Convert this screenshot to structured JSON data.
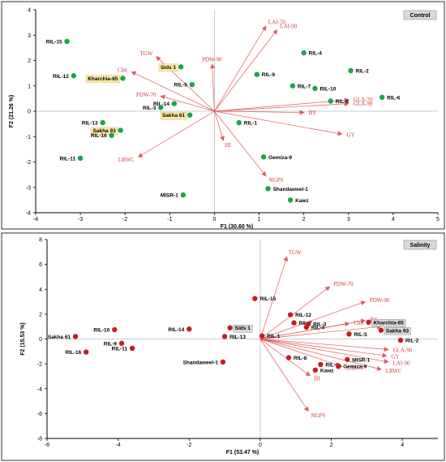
{
  "chart_data": [
    {
      "type": "scatter",
      "title": "Control",
      "xlabel": "F1 (30.60 %)",
      "ylabel": "F2 (21.26 %)",
      "xlim": [
        -4,
        5
      ],
      "ylim": [
        -4,
        4
      ],
      "xticks": [
        "-4",
        "-3",
        "-2",
        "-1",
        "0",
        "1",
        "2",
        "3",
        "4",
        "5"
      ],
      "yticks": [
        "-4",
        "-3",
        "-2",
        "-1",
        "0",
        "1",
        "2",
        "3",
        "4"
      ],
      "point_color": "#1aa64a",
      "vector_color": "#e05a5a",
      "points": [
        {
          "name": "RIL-15",
          "x": -3.3,
          "y": 2.75,
          "highlight": false
        },
        {
          "name": "RIL-12",
          "x": -3.15,
          "y": 1.4,
          "highlight": false
        },
        {
          "name": "Kharchia-65",
          "x": -2.05,
          "y": 1.3,
          "highlight": true
        },
        {
          "name": "Sids 1",
          "x": -0.75,
          "y": 1.75,
          "highlight": true
        },
        {
          "name": "RIL-5",
          "x": -0.5,
          "y": 1.05,
          "highlight": false
        },
        {
          "name": "RIL-14",
          "x": -0.9,
          "y": 0.3,
          "highlight": false
        },
        {
          "name": "RIL-3",
          "x": -1.2,
          "y": 0.15,
          "highlight": false
        },
        {
          "name": "Sakha 61",
          "x": -0.55,
          "y": -0.15,
          "highlight": true
        },
        {
          "name": "RIL-13",
          "x": -2.5,
          "y": -0.45,
          "highlight": false
        },
        {
          "name": "Sakha 93",
          "x": -2.1,
          "y": -0.75,
          "highlight": true
        },
        {
          "name": "RIL-16",
          "x": -2.3,
          "y": -0.95,
          "highlight": false
        },
        {
          "name": "RIL-11",
          "x": -3.0,
          "y": -1.85,
          "highlight": false
        },
        {
          "name": "MISR-1",
          "x": -0.7,
          "y": -3.3,
          "highlight": false
        },
        {
          "name": "RIL-1",
          "x": 0.55,
          "y": -0.45,
          "highlight": false
        },
        {
          "name": "RIL-9",
          "x": 0.95,
          "y": 1.45,
          "highlight": false
        },
        {
          "name": "RIL-7",
          "x": 1.75,
          "y": 1.0,
          "highlight": false
        },
        {
          "name": "RIL-4",
          "x": 2.0,
          "y": 2.3,
          "highlight": false
        },
        {
          "name": "RIL-10",
          "x": 2.25,
          "y": 0.9,
          "highlight": false
        },
        {
          "name": "RIL-8",
          "x": 2.6,
          "y": 0.4,
          "highlight": false
        },
        {
          "name": "RIL-2",
          "x": 3.05,
          "y": 1.6,
          "highlight": false
        },
        {
          "name": "RIL-6",
          "x": 3.75,
          "y": 0.55,
          "highlight": false
        },
        {
          "name": "Gemiza-9",
          "x": 1.1,
          "y": -1.8,
          "highlight": false
        },
        {
          "name": "Shandaweel-1",
          "x": 1.2,
          "y": -3.05,
          "highlight": false
        },
        {
          "name": "Kawz",
          "x": 1.7,
          "y": -3.5,
          "highlight": false
        }
      ],
      "vectors": [
        {
          "name": "LAI-70",
          "x": 1.15,
          "y": 3.35
        },
        {
          "name": "LAI-90",
          "x": 1.4,
          "y": 3.2
        },
        {
          "name": "TGW",
          "x": -1.3,
          "y": 2.15
        },
        {
          "name": "Chlt",
          "x": -1.85,
          "y": 1.55
        },
        {
          "name": "PDW-90",
          "x": -0.05,
          "y": 1.85
        },
        {
          "name": "PDW-70",
          "x": -1.2,
          "y": 0.6
        },
        {
          "name": "BY",
          "x": 2.0,
          "y": -0.05
        },
        {
          "name": "GLA-70",
          "x": 3.0,
          "y": 0.45
        },
        {
          "name": "GLA-90",
          "x": 3.0,
          "y": 0.3
        },
        {
          "name": "GY",
          "x": 2.85,
          "y": -0.9
        },
        {
          "name": "HI",
          "x": 0.2,
          "y": -1.15
        },
        {
          "name": "NGPS",
          "x": 1.15,
          "y": -2.55
        },
        {
          "name": "LRWC",
          "x": -1.7,
          "y": -1.8
        }
      ]
    },
    {
      "type": "scatter",
      "title": "Salinity",
      "xlabel": "F1 (53.47 %)",
      "ylabel": "F2 (15.53 %)",
      "xlim": [
        -6,
        5
      ],
      "ylim": [
        -8,
        8
      ],
      "xticks": [
        "-6",
        "-4",
        "-2",
        "0",
        "2",
        "4"
      ],
      "yticks": [
        "-8",
        "-6",
        "-4",
        "-2",
        "0",
        "2",
        "4",
        "6",
        "8"
      ],
      "point_color": "#c81e1e",
      "vector_color": "#e05a5a",
      "points": [
        {
          "name": "Sakha 61",
          "x": -5.2,
          "y": 0.2,
          "highlight": false
        },
        {
          "name": "RIL-16",
          "x": -4.9,
          "y": -1.05,
          "highlight": false
        },
        {
          "name": "RIL-10",
          "x": -4.1,
          "y": 0.75,
          "highlight": false
        },
        {
          "name": "RIL-9",
          "x": -3.9,
          "y": -0.35,
          "highlight": false
        },
        {
          "name": "RIL-11",
          "x": -3.6,
          "y": -0.75,
          "highlight": false
        },
        {
          "name": "RIL-14",
          "x": -2.0,
          "y": 0.8,
          "highlight": false
        },
        {
          "name": "Shandaweel-1",
          "x": -1.05,
          "y": -1.85,
          "highlight": false
        },
        {
          "name": "Sids 1",
          "x": -0.85,
          "y": 0.9,
          "highlight": true
        },
        {
          "name": "RIL-13",
          "x": -1.0,
          "y": 0.2,
          "highlight": false
        },
        {
          "name": "RIL-15",
          "x": -0.15,
          "y": 3.25,
          "highlight": false
        },
        {
          "name": "RIL-1",
          "x": 0.05,
          "y": 0.25,
          "highlight": false
        },
        {
          "name": "RIL-12",
          "x": 0.85,
          "y": 1.95,
          "highlight": false
        },
        {
          "name": "RIL-7",
          "x": 0.95,
          "y": 1.3,
          "highlight": false
        },
        {
          "name": "RIL-4",
          "x": 1.3,
          "y": 0.95,
          "highlight": false
        },
        {
          "name": "RIL-3",
          "x": 1.35,
          "y": 1.2,
          "highlight": false
        },
        {
          "name": "RIL-5",
          "x": 2.5,
          "y": 0.4,
          "highlight": false
        },
        {
          "name": "RIL-8",
          "x": 0.8,
          "y": -1.5,
          "highlight": false
        },
        {
          "name": "RIL-6",
          "x": 1.7,
          "y": -2.05,
          "highlight": false
        },
        {
          "name": "Kawz",
          "x": 1.55,
          "y": -2.5,
          "highlight": false
        },
        {
          "name": "MISR-1",
          "x": 2.45,
          "y": -1.65,
          "highlight": false
        },
        {
          "name": "Gemiza-9",
          "x": 2.2,
          "y": -2.2,
          "highlight": false
        },
        {
          "name": "Kharchia-65",
          "x": 3.05,
          "y": 1.35,
          "highlight": true
        },
        {
          "name": "Sakha 93",
          "x": 3.4,
          "y": 0.7,
          "highlight": true
        },
        {
          "name": "RIL-2",
          "x": 3.95,
          "y": -0.1,
          "highlight": false
        }
      ],
      "vectors": [
        {
          "name": "TGW",
          "x": 0.75,
          "y": 6.6
        },
        {
          "name": "PDW-70",
          "x": 1.95,
          "y": 4.2
        },
        {
          "name": "PDW-90",
          "x": 2.95,
          "y": 3.0
        },
        {
          "name": "BY",
          "x": 2.95,
          "y": 1.5
        },
        {
          "name": "Chlt",
          "x": 2.5,
          "y": 1.25
        },
        {
          "name": "GLA-70",
          "x": 3.4,
          "y": 1.0
        },
        {
          "name": "GLA-90",
          "x": 3.6,
          "y": -0.85
        },
        {
          "name": "GY",
          "x": 3.55,
          "y": -1.35
        },
        {
          "name": "LAI-90",
          "x": 3.6,
          "y": -1.85
        },
        {
          "name": "LRWC",
          "x": 3.4,
          "y": -2.45
        },
        {
          "name": "LAI-70",
          "x": 2.3,
          "y": -2.2
        },
        {
          "name": "HI",
          "x": 1.4,
          "y": -2.95
        },
        {
          "name": "NGPS",
          "x": 1.35,
          "y": -5.8
        }
      ]
    }
  ]
}
